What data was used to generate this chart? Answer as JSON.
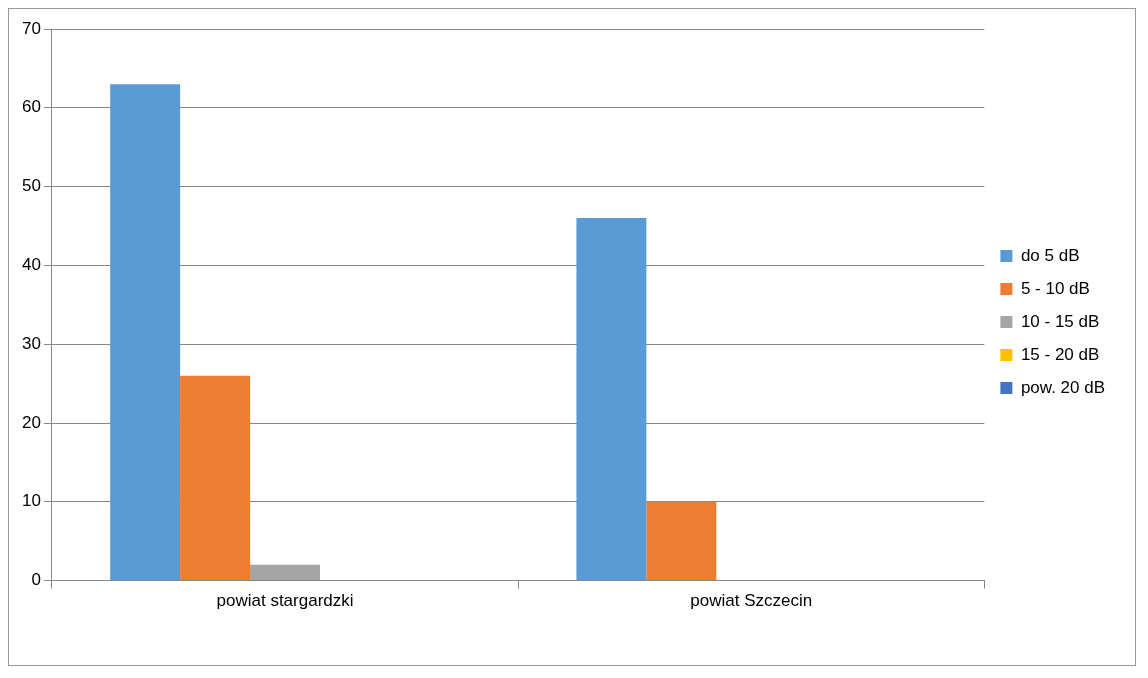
{
  "chart_data": {
    "type": "bar",
    "categories": [
      "powiat stargardzki",
      "powiat Szczecin"
    ],
    "series": [
      {
        "name": "do 5 dB",
        "color": "#5b9bd5",
        "values": [
          63,
          46
        ]
      },
      {
        "name": "5 - 10 dB",
        "color": "#ed7d31",
        "values": [
          26,
          10
        ]
      },
      {
        "name": "10 - 15 dB",
        "color": "#a5a5a5",
        "values": [
          2,
          0
        ]
      },
      {
        "name": "15 - 20 dB",
        "color": "#ffc000",
        "values": [
          0,
          0
        ]
      },
      {
        "name": "pow. 20 dB",
        "color": "#4472c4",
        "values": [
          0,
          0
        ]
      }
    ],
    "ylim": [
      0,
      70
    ],
    "yticks": [
      0,
      10,
      20,
      30,
      40,
      50,
      60,
      70
    ],
    "grid": "y",
    "legend": "right"
  }
}
